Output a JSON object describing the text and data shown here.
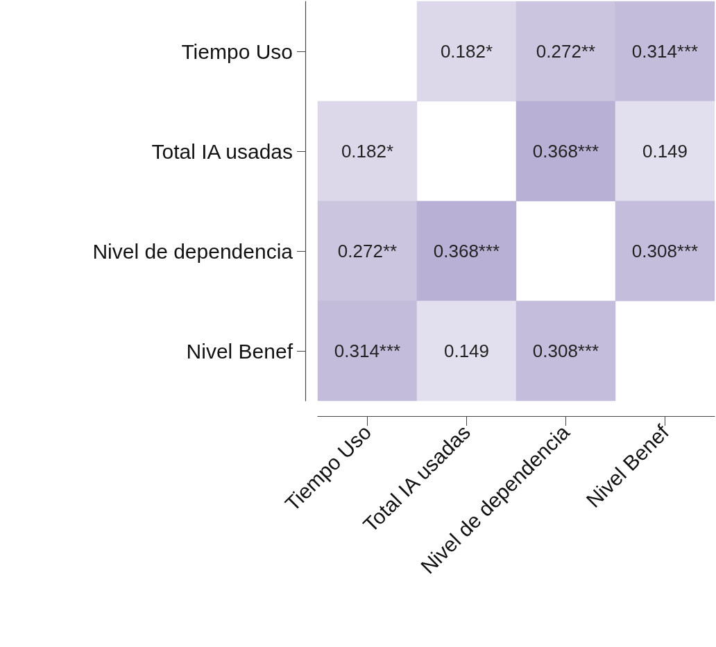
{
  "chart_data": {
    "type": "heatmap",
    "categories": [
      "Tiempo Uso",
      "Total IA usadas",
      "Nivel de dependencia",
      "Nivel Benef"
    ],
    "y_categories": [
      "Tiempo Uso",
      "Total IA usadas",
      "Nivel de dependencia",
      "Nivel Benef"
    ],
    "cells": [
      [
        null,
        0.182,
        0.272,
        0.314
      ],
      [
        0.182,
        null,
        0.368,
        0.149
      ],
      [
        0.272,
        0.368,
        null,
        0.308
      ],
      [
        0.314,
        0.149,
        0.308,
        null
      ]
    ],
    "cell_labels": [
      [
        null,
        "0.182*",
        "0.272**",
        "0.314***"
      ],
      [
        "0.182*",
        null,
        "0.368***",
        "0.149"
      ],
      [
        "0.272**",
        "0.368***",
        null,
        "0.308***"
      ],
      [
        "0.314***",
        "0.149",
        "0.308***",
        null
      ]
    ]
  }
}
